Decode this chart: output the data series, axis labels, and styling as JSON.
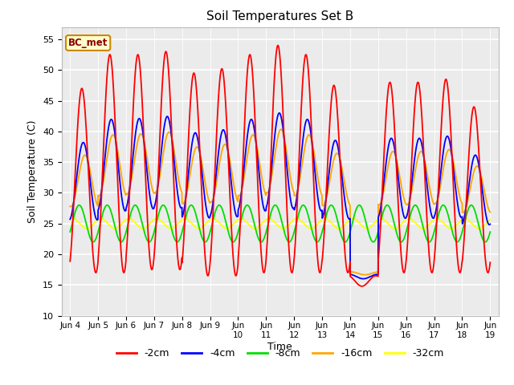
{
  "title": "Soil Temperatures Set B",
  "xlabel": "Time",
  "ylabel": "Soil Temperature (C)",
  "ylim": [
    10,
    57
  ],
  "yticks": [
    10,
    15,
    20,
    25,
    30,
    35,
    40,
    45,
    50,
    55
  ],
  "annotation_text": "BC_met",
  "annotation_fg": "#8B0000",
  "annotation_bg": "#ffffcc",
  "annotation_border": "#cc8800",
  "colors": {
    "-2cm": "red",
    "-4cm": "blue",
    "-8cm": "#00dd00",
    "-16cm": "orange",
    "-32cm": "yellow"
  },
  "bg_color": "#ebebeb",
  "grid_color": "white",
  "n_days": 15,
  "day_peaks_2cm": [
    47,
    52.5,
    52.5,
    53,
    49.5,
    50.2,
    52.5,
    54,
    52.5,
    47.5,
    14.8,
    48,
    48,
    48.5,
    44
  ],
  "day_troughs_2cm": [
    17,
    17,
    17.5,
    17.5,
    16.5,
    16.5,
    17,
    17,
    17,
    17,
    16.5,
    17,
    17,
    17,
    17
  ],
  "xtick_labels": [
    "Jun 4",
    "Jun 5",
    "Jun 6",
    "Jun 7",
    "Jun 8",
    "Jun 9",
    "Jun\n10",
    "Jun\n11",
    "Jun\n12",
    "Jun\n13",
    "Jun\n14",
    "Jun\n15",
    "Jun\n16",
    "Jun\n17",
    "Jun\n18",
    "Jun\n19"
  ],
  "legend_labels": [
    "-2cm",
    "-4cm",
    "-8cm",
    "-16cm",
    "-32cm"
  ]
}
